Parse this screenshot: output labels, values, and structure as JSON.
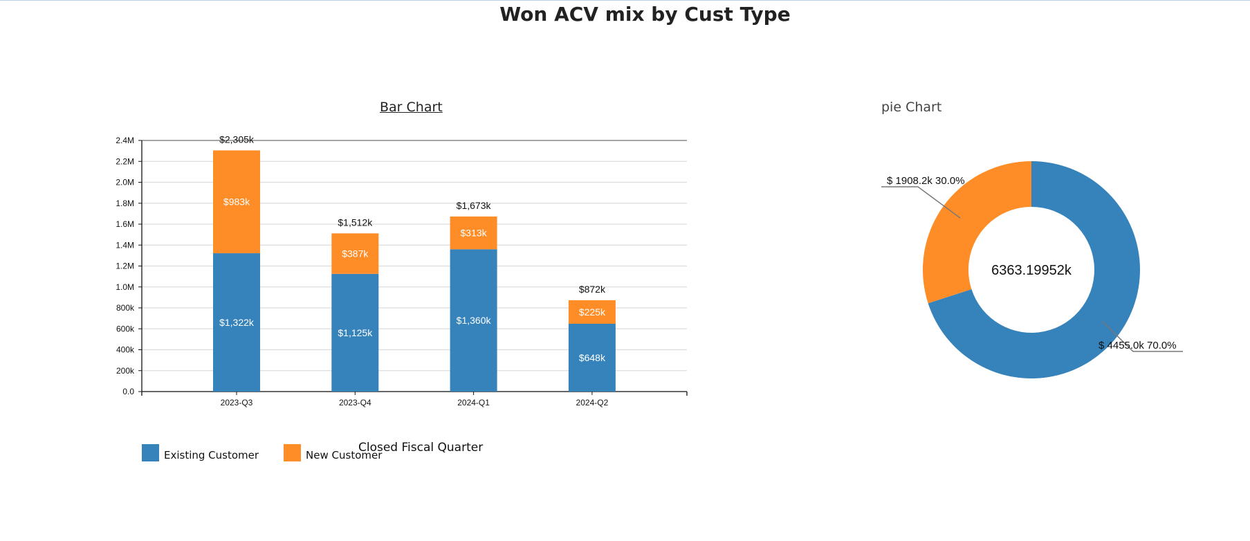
{
  "page": {
    "title": "Won ACV mix by Cust Type"
  },
  "colors": {
    "existing": "#3683bb",
    "new": "#ff8d27"
  },
  "bar_panel": {
    "title": "Bar Chart",
    "x_label": "Closed Fiscal Quarter"
  },
  "pie_panel": {
    "title": "pie Chart"
  },
  "legend": [
    {
      "label": "Existing Customer",
      "color": "#3683bb"
    },
    {
      "label": "New Customer",
      "color": "#ff8d27"
    }
  ],
  "chart_data": [
    {
      "type": "bar",
      "stacked": true,
      "title": "Bar Chart",
      "xlabel": "Closed Fiscal Quarter",
      "ylabel": "",
      "categories": [
        "2023-Q3",
        "2023-Q4",
        "2024-Q1",
        "2024-Q2"
      ],
      "series": [
        {
          "name": "Existing Customer",
          "values": [
            1322000,
            1125000,
            1360000,
            648000
          ],
          "labels": [
            "$1,322k",
            "$1,125k",
            "$1,360k",
            "$648k"
          ]
        },
        {
          "name": "New Customer",
          "values": [
            983000,
            387000,
            313000,
            225000
          ],
          "labels": [
            "$983k",
            "$387k",
            "$313k",
            "$225k"
          ]
        }
      ],
      "totals": [
        2305000,
        1512000,
        1673000,
        872000
      ],
      "total_labels": [
        "$2,305k",
        "$1,512k",
        "$1,673k",
        "$872k"
      ],
      "ylim": [
        0,
        2400000
      ],
      "yticks": [
        0,
        200000,
        400000,
        600000,
        800000,
        1000000,
        1200000,
        1400000,
        1600000,
        1800000,
        2000000,
        2200000,
        2400000
      ],
      "ytick_labels": [
        "0.0",
        "200k",
        "400k",
        "600k",
        "800k",
        "1.0M",
        "1.2M",
        "1.4M",
        "1.6M",
        "1.8M",
        "2.0M",
        "2.2M",
        "2.4M"
      ],
      "grid": true,
      "legend": "bottom-left"
    },
    {
      "type": "pie",
      "donut": true,
      "title": "pie Chart",
      "center_label": "6363.19952k",
      "slices": [
        {
          "name": "Existing Customer",
          "value": 4455.0,
          "percent": 70.0,
          "label": "$ 4455.0k 70.0%"
        },
        {
          "name": "New Customer",
          "value": 1908.2,
          "percent": 30.0,
          "label": "$ 1908.2k 30.0%"
        }
      ]
    }
  ]
}
